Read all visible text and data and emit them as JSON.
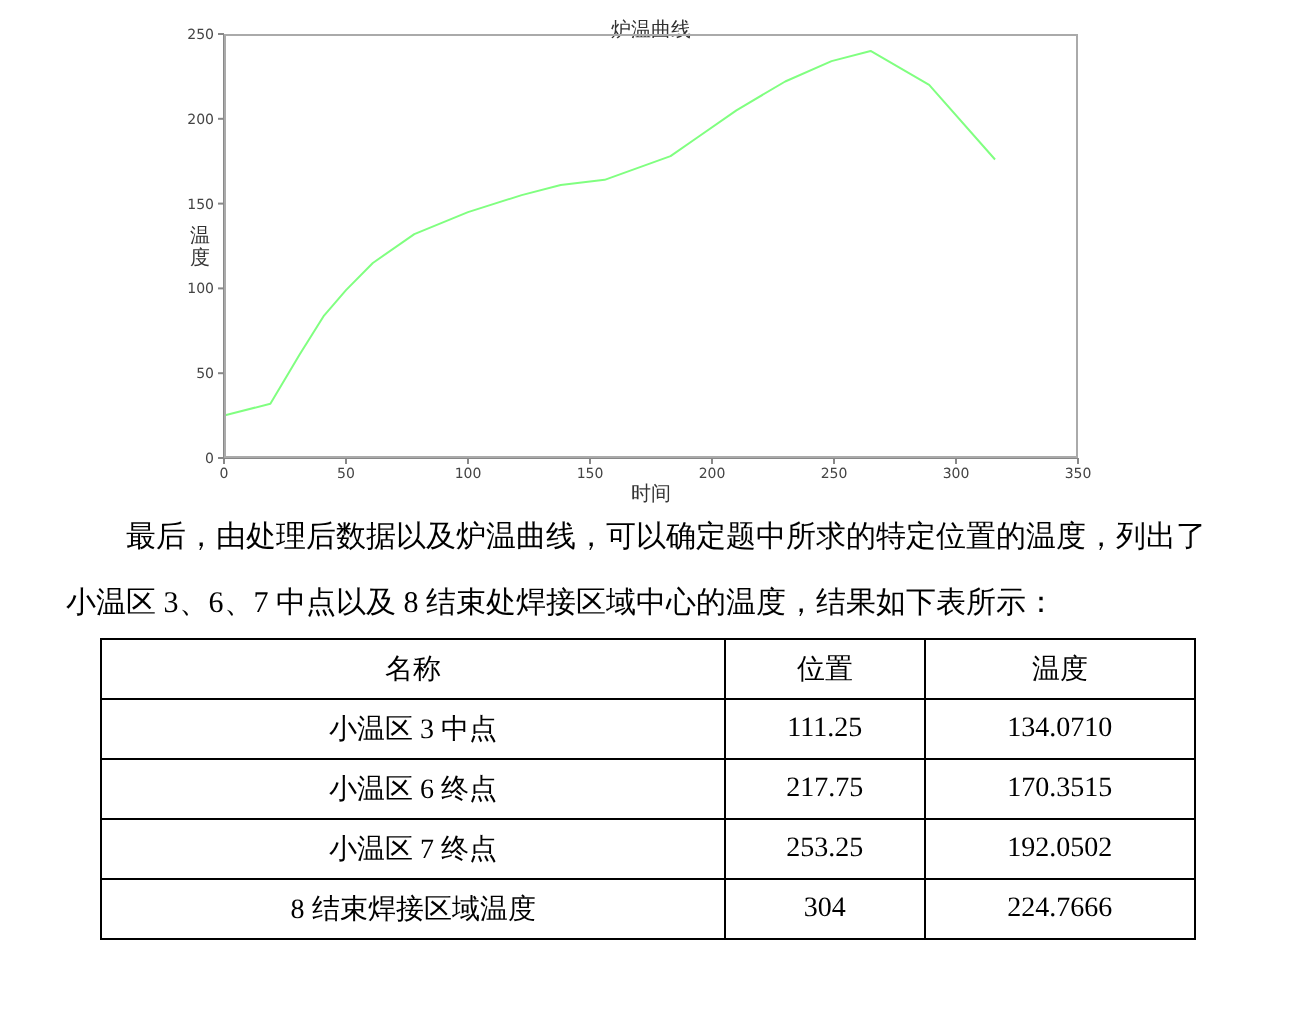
{
  "chart_data": {
    "type": "line",
    "title": "炉温曲线",
    "xlabel": "时间",
    "ylabel": "温度",
    "x": [
      0,
      19,
      31,
      41,
      50,
      61,
      78,
      100,
      122,
      138,
      156,
      183,
      194,
      210,
      230,
      249,
      265,
      289,
      316
    ],
    "series": [
      {
        "color": "#80ff80",
        "values": [
          25,
          32,
          61,
          84,
          99,
          115,
          132,
          145,
          155,
          161,
          164,
          178,
          189,
          205,
          222,
          234,
          240,
          220,
          176
        ]
      }
    ],
    "xlim": [
      0,
      350
    ],
    "xticks": [
      0,
      50,
      100,
      150,
      200,
      250,
      300,
      350
    ],
    "ylim": [
      0,
      250
    ],
    "yticks": [
      0,
      50,
      100,
      150,
      200,
      250
    ],
    "marker": "none",
    "line_style": "solid",
    "annotations": [
      "最后，由处理后数据以及炉温曲线，可以确定题中所求的特定位置的温度，列出了小温区 3、6、7 中点以及 8 结束处焊接区域中心的温度，结果如下表所示：",
      "名称",
      "位置",
      "温度",
      "小温区 3 中点",
      "111.25",
      "134.0710",
      "小温区 6 终点",
      "217.75",
      "170.3515",
      "小温区 7 终点",
      "253.25",
      "192.0502",
      "8 结束焊接区域温度",
      "304",
      "224.7666"
    ]
  }
}
